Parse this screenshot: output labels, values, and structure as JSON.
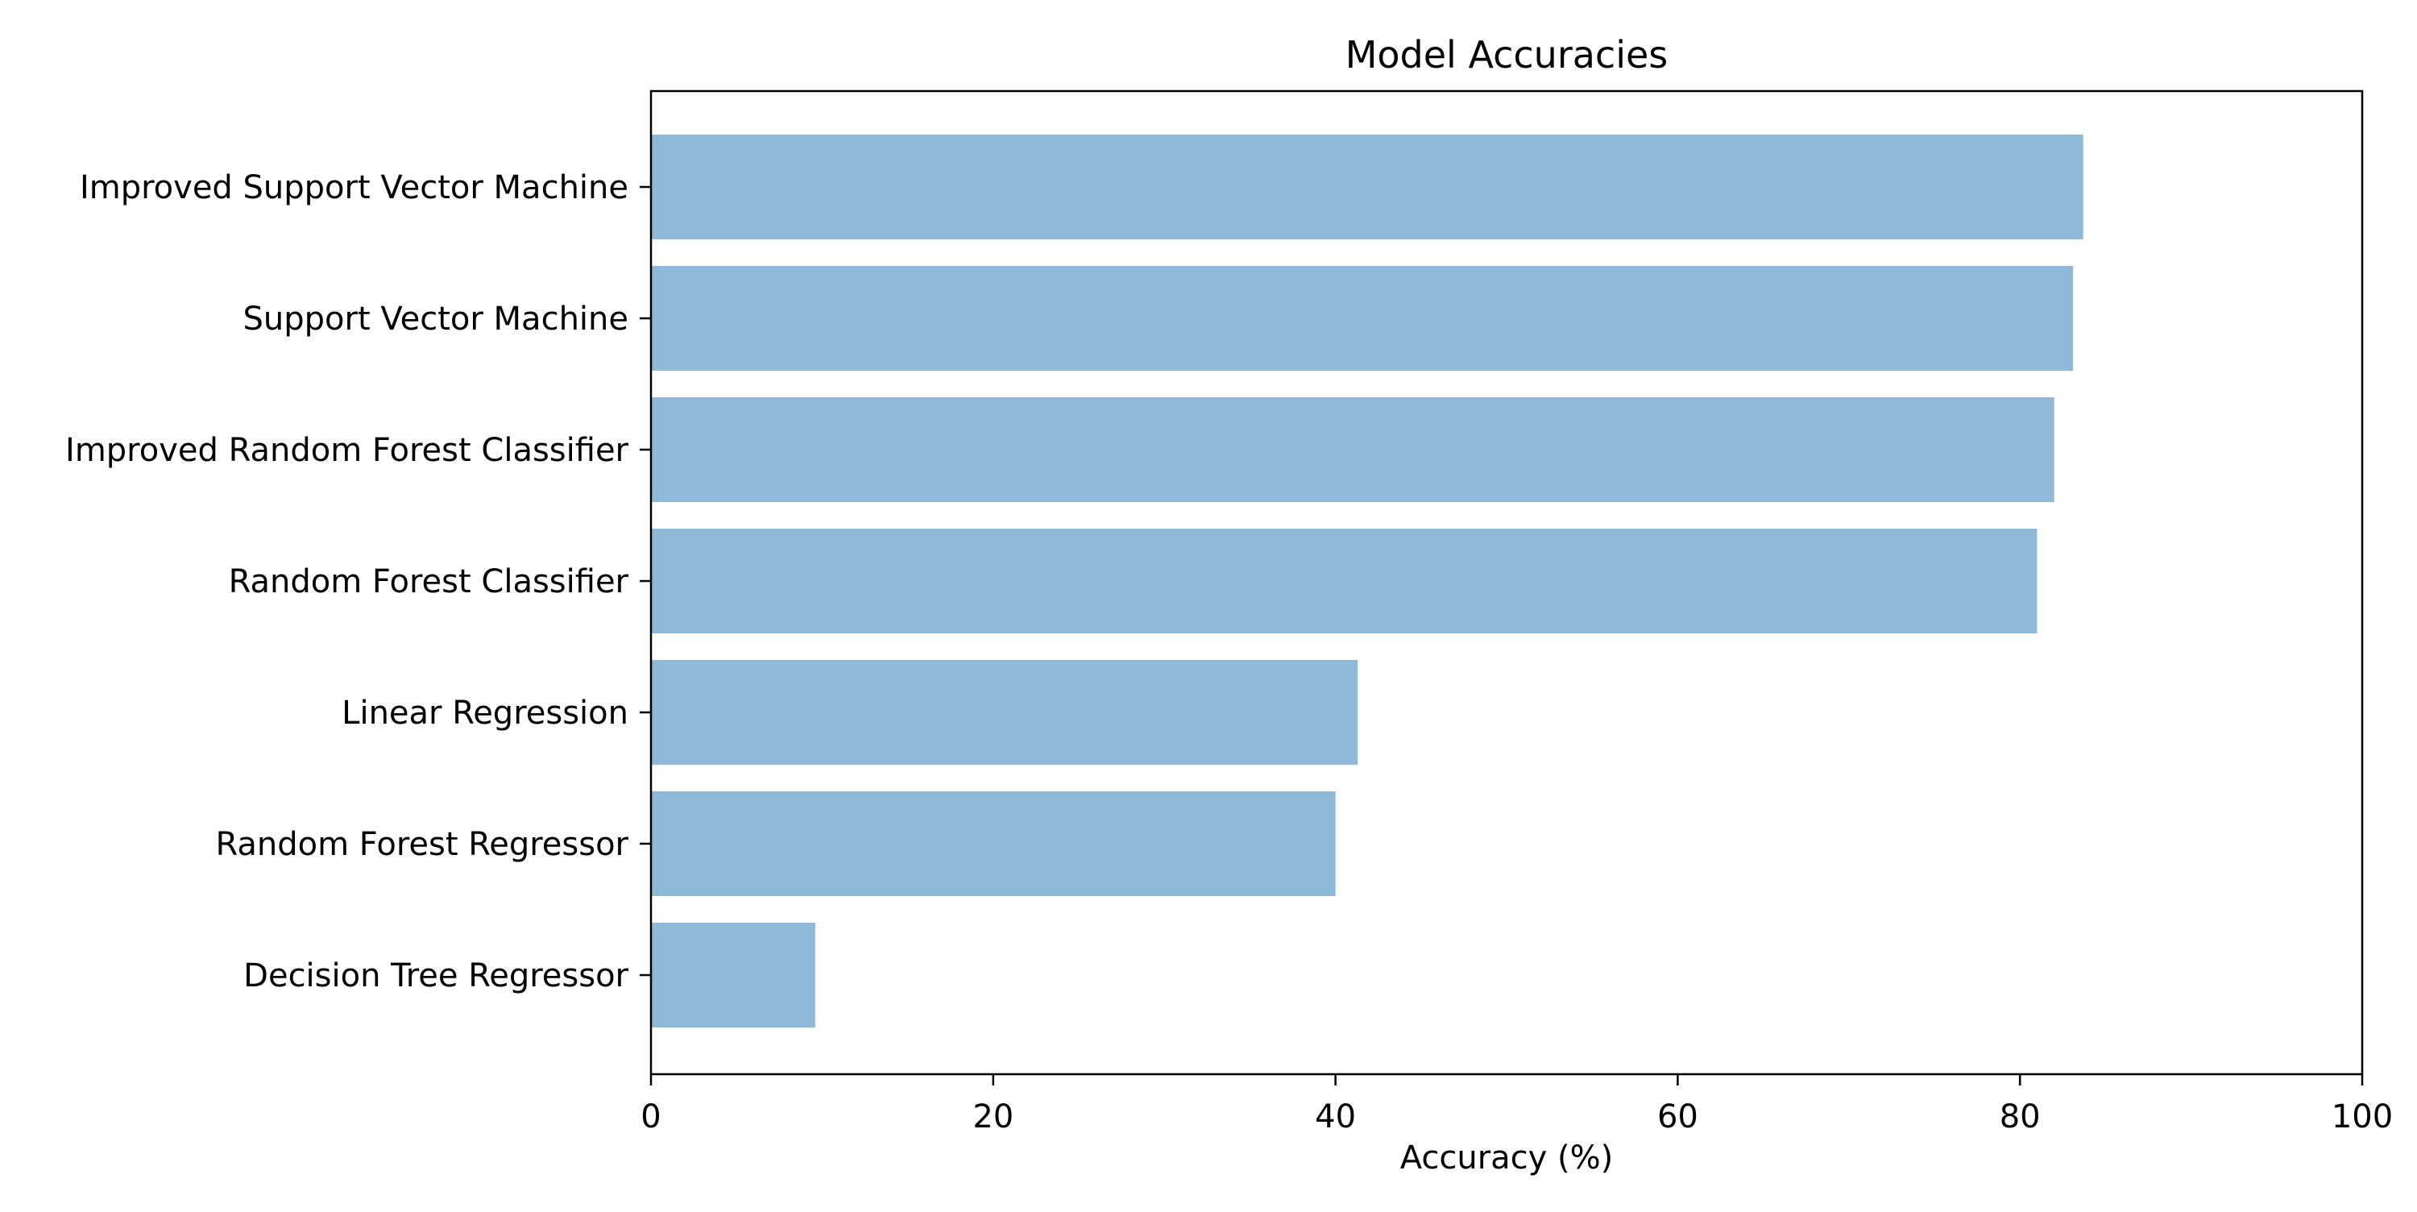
{
  "chart_data": {
    "type": "bar",
    "orientation": "horizontal",
    "title": "Model Accuracies",
    "xlabel": "Accuracy (%)",
    "ylabel": "",
    "categories": [
      "Improved Support Vector Machine",
      "Support Vector Machine",
      "Improved Random Forest Classifier",
      "Random Forest Classifier",
      "Linear Regression",
      "Random Forest Regressor",
      "Decision Tree Regressor"
    ],
    "values": [
      83.7,
      83.1,
      82.0,
      81.0,
      41.3,
      40.0,
      9.6
    ],
    "xlim": [
      0,
      100
    ],
    "xticks": [
      0,
      20,
      40,
      60,
      80,
      100
    ],
    "grid": false,
    "legend": "none",
    "bar_color": "#8fb9d9"
  }
}
